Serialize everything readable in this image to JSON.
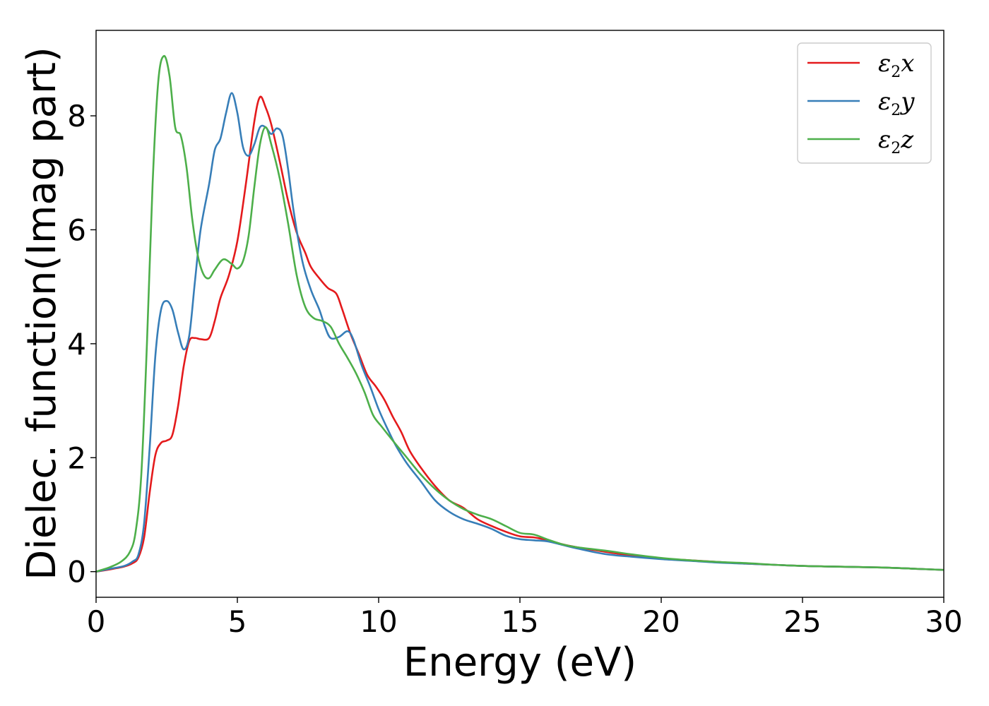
{
  "chart_data": {
    "type": "line",
    "xlabel": "Energy (eV)",
    "ylabel": "Dielec. function(Imag part)",
    "xlim": [
      0,
      30
    ],
    "ylim": [
      -0.45,
      9.5
    ],
    "xticks": [
      0,
      5,
      10,
      15,
      20,
      25,
      30
    ],
    "yticks": [
      0,
      2,
      4,
      6,
      8
    ],
    "legend_position": "top-right",
    "grid": false,
    "series": [
      {
        "name": "ε₂x",
        "legend_base": "ε",
        "legend_sub": "2",
        "legend_tail": "x",
        "color": "#e41a1c",
        "points": [
          [
            0,
            0
          ],
          [
            0.5,
            0.04
          ],
          [
            1.0,
            0.09
          ],
          [
            1.3,
            0.15
          ],
          [
            1.5,
            0.25
          ],
          [
            1.7,
            0.6
          ],
          [
            1.9,
            1.4
          ],
          [
            2.1,
            2.05
          ],
          [
            2.3,
            2.26
          ],
          [
            2.5,
            2.3
          ],
          [
            2.7,
            2.4
          ],
          [
            2.9,
            2.9
          ],
          [
            3.1,
            3.6
          ],
          [
            3.3,
            4.05
          ],
          [
            3.5,
            4.1
          ],
          [
            3.7,
            4.08
          ],
          [
            4.0,
            4.1
          ],
          [
            4.2,
            4.4
          ],
          [
            4.4,
            4.8
          ],
          [
            4.7,
            5.2
          ],
          [
            5.0,
            5.8
          ],
          [
            5.3,
            6.8
          ],
          [
            5.6,
            7.9
          ],
          [
            5.8,
            8.33
          ],
          [
            6.0,
            8.15
          ],
          [
            6.2,
            7.85
          ],
          [
            6.5,
            7.2
          ],
          [
            6.8,
            6.5
          ],
          [
            7.1,
            5.95
          ],
          [
            7.4,
            5.6
          ],
          [
            7.6,
            5.35
          ],
          [
            7.9,
            5.15
          ],
          [
            8.2,
            4.98
          ],
          [
            8.5,
            4.88
          ],
          [
            8.7,
            4.62
          ],
          [
            9.0,
            4.18
          ],
          [
            9.3,
            3.82
          ],
          [
            9.6,
            3.45
          ],
          [
            9.9,
            3.25
          ],
          [
            10.2,
            3.02
          ],
          [
            10.5,
            2.72
          ],
          [
            10.8,
            2.45
          ],
          [
            11.1,
            2.12
          ],
          [
            11.5,
            1.82
          ],
          [
            12.0,
            1.5
          ],
          [
            12.5,
            1.25
          ],
          [
            13.0,
            1.12
          ],
          [
            13.5,
            0.92
          ],
          [
            14.0,
            0.8
          ],
          [
            14.5,
            0.7
          ],
          [
            15.0,
            0.62
          ],
          [
            15.5,
            0.6
          ],
          [
            16.0,
            0.55
          ],
          [
            16.5,
            0.48
          ],
          [
            17.0,
            0.43
          ],
          [
            18.0,
            0.35
          ],
          [
            19.0,
            0.28
          ],
          [
            20.0,
            0.23
          ],
          [
            21.0,
            0.2
          ],
          [
            22.0,
            0.17
          ],
          [
            23.0,
            0.14
          ],
          [
            24.0,
            0.12
          ],
          [
            25.0,
            0.1
          ],
          [
            26.0,
            0.09
          ],
          [
            27.0,
            0.08
          ],
          [
            28.0,
            0.07
          ],
          [
            29.0,
            0.05
          ],
          [
            30.0,
            0.03
          ]
        ]
      },
      {
        "name": "ε₂y",
        "legend_base": "ε",
        "legend_sub": "2",
        "legend_tail": "y",
        "color": "#377eb8",
        "points": [
          [
            0,
            0
          ],
          [
            0.5,
            0.05
          ],
          [
            1.0,
            0.1
          ],
          [
            1.3,
            0.18
          ],
          [
            1.5,
            0.3
          ],
          [
            1.7,
            0.85
          ],
          [
            1.9,
            2.2
          ],
          [
            2.1,
            3.8
          ],
          [
            2.3,
            4.6
          ],
          [
            2.5,
            4.75
          ],
          [
            2.7,
            4.6
          ],
          [
            2.9,
            4.2
          ],
          [
            3.1,
            3.9
          ],
          [
            3.3,
            4.15
          ],
          [
            3.5,
            5.1
          ],
          [
            3.7,
            6.0
          ],
          [
            4.0,
            6.8
          ],
          [
            4.2,
            7.4
          ],
          [
            4.4,
            7.6
          ],
          [
            4.6,
            8.05
          ],
          [
            4.8,
            8.4
          ],
          [
            5.0,
            8.05
          ],
          [
            5.2,
            7.45
          ],
          [
            5.4,
            7.3
          ],
          [
            5.6,
            7.5
          ],
          [
            5.8,
            7.8
          ],
          [
            6.0,
            7.8
          ],
          [
            6.2,
            7.68
          ],
          [
            6.4,
            7.78
          ],
          [
            6.6,
            7.65
          ],
          [
            6.8,
            7.05
          ],
          [
            7.0,
            6.3
          ],
          [
            7.3,
            5.45
          ],
          [
            7.6,
            4.95
          ],
          [
            7.9,
            4.6
          ],
          [
            8.1,
            4.3
          ],
          [
            8.3,
            4.1
          ],
          [
            8.6,
            4.12
          ],
          [
            8.9,
            4.22
          ],
          [
            9.1,
            4.08
          ],
          [
            9.4,
            3.62
          ],
          [
            9.7,
            3.25
          ],
          [
            10.0,
            2.85
          ],
          [
            10.3,
            2.52
          ],
          [
            10.6,
            2.22
          ],
          [
            11.0,
            1.9
          ],
          [
            11.5,
            1.58
          ],
          [
            12.0,
            1.25
          ],
          [
            12.5,
            1.05
          ],
          [
            13.0,
            0.92
          ],
          [
            13.5,
            0.84
          ],
          [
            14.0,
            0.75
          ],
          [
            14.5,
            0.63
          ],
          [
            15.0,
            0.57
          ],
          [
            15.5,
            0.55
          ],
          [
            16.0,
            0.53
          ],
          [
            16.5,
            0.47
          ],
          [
            17.0,
            0.41
          ],
          [
            18.0,
            0.31
          ],
          [
            19.0,
            0.26
          ],
          [
            20.0,
            0.22
          ],
          [
            21.0,
            0.19
          ],
          [
            22.0,
            0.16
          ],
          [
            23.0,
            0.14
          ],
          [
            24.0,
            0.12
          ],
          [
            25.0,
            0.1
          ],
          [
            26.0,
            0.09
          ],
          [
            27.0,
            0.08
          ],
          [
            28.0,
            0.07
          ],
          [
            29.0,
            0.05
          ],
          [
            30.0,
            0.03
          ]
        ]
      },
      {
        "name": "ε₂z",
        "legend_base": "ε",
        "legend_sub": "2",
        "legend_tail": "z",
        "color": "#4daf4a",
        "points": [
          [
            0,
            0
          ],
          [
            0.5,
            0.08
          ],
          [
            0.9,
            0.18
          ],
          [
            1.2,
            0.35
          ],
          [
            1.4,
            0.7
          ],
          [
            1.6,
            1.7
          ],
          [
            1.8,
            4.0
          ],
          [
            2.0,
            6.8
          ],
          [
            2.2,
            8.6
          ],
          [
            2.4,
            9.05
          ],
          [
            2.6,
            8.7
          ],
          [
            2.8,
            7.8
          ],
          [
            3.0,
            7.65
          ],
          [
            3.2,
            7.1
          ],
          [
            3.4,
            6.2
          ],
          [
            3.6,
            5.55
          ],
          [
            3.8,
            5.22
          ],
          [
            4.0,
            5.15
          ],
          [
            4.2,
            5.3
          ],
          [
            4.5,
            5.48
          ],
          [
            4.8,
            5.4
          ],
          [
            5.0,
            5.32
          ],
          [
            5.2,
            5.45
          ],
          [
            5.4,
            5.9
          ],
          [
            5.6,
            6.75
          ],
          [
            5.8,
            7.5
          ],
          [
            6.0,
            7.8
          ],
          [
            6.2,
            7.5
          ],
          [
            6.5,
            6.9
          ],
          [
            6.8,
            6.1
          ],
          [
            7.1,
            5.2
          ],
          [
            7.4,
            4.65
          ],
          [
            7.7,
            4.45
          ],
          [
            8.0,
            4.4
          ],
          [
            8.3,
            4.3
          ],
          [
            8.6,
            4.0
          ],
          [
            8.9,
            3.75
          ],
          [
            9.2,
            3.48
          ],
          [
            9.5,
            3.15
          ],
          [
            9.8,
            2.75
          ],
          [
            10.1,
            2.55
          ],
          [
            10.5,
            2.3
          ],
          [
            11.0,
            2.0
          ],
          [
            11.5,
            1.7
          ],
          [
            12.0,
            1.45
          ],
          [
            12.5,
            1.25
          ],
          [
            13.0,
            1.1
          ],
          [
            13.5,
            1.0
          ],
          [
            14.0,
            0.92
          ],
          [
            14.5,
            0.8
          ],
          [
            15.0,
            0.68
          ],
          [
            15.5,
            0.65
          ],
          [
            16.0,
            0.56
          ],
          [
            16.5,
            0.48
          ],
          [
            17.0,
            0.43
          ],
          [
            18.0,
            0.37
          ],
          [
            19.0,
            0.3
          ],
          [
            20.0,
            0.24
          ],
          [
            21.0,
            0.2
          ],
          [
            22.0,
            0.17
          ],
          [
            23.0,
            0.15
          ],
          [
            24.0,
            0.12
          ],
          [
            25.0,
            0.1
          ],
          [
            26.0,
            0.09
          ],
          [
            27.0,
            0.08
          ],
          [
            28.0,
            0.07
          ],
          [
            29.0,
            0.05
          ],
          [
            30.0,
            0.03
          ]
        ]
      }
    ]
  }
}
